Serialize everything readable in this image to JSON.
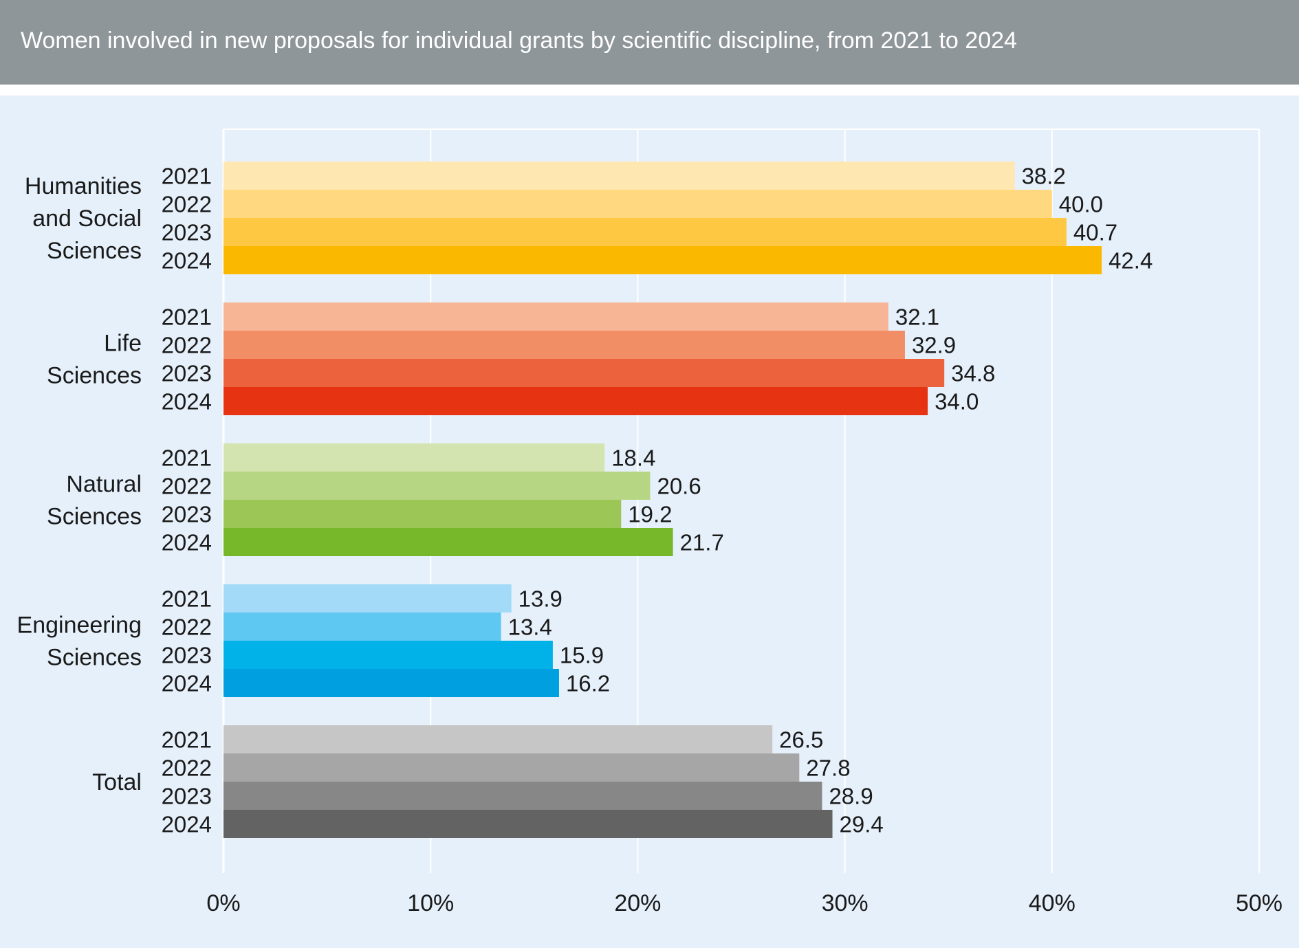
{
  "title": "Women involved in new proposals for individual grants by scientific discipline, from 2021 to 2024",
  "chart_data": {
    "type": "bar",
    "orientation": "horizontal",
    "title": "Women involved in new proposals for individual grants by scientific discipline, from 2021 to 2024",
    "xlim": [
      0,
      50
    ],
    "x_ticks": [
      "0%",
      "10%",
      "20%",
      "30%",
      "40%",
      "50%"
    ],
    "grid": true,
    "groups": [
      {
        "label_lines": [
          "Humanities",
          "and Social",
          "Sciences"
        ],
        "years": [
          "2021",
          "2022",
          "2023",
          "2024"
        ],
        "values": [
          38.2,
          40.0,
          40.7,
          42.4
        ],
        "value_labels": [
          "38.2",
          "40.0",
          "40.7",
          "42.4"
        ],
        "colors": [
          "#ffe7b2",
          "#ffd880",
          "#fec843",
          "#fbb800"
        ]
      },
      {
        "label_lines": [
          "Life",
          "Sciences"
        ],
        "years": [
          "2021",
          "2022",
          "2023",
          "2024"
        ],
        "values": [
          32.1,
          32.9,
          34.8,
          34.0
        ],
        "value_labels": [
          "32.1",
          "32.9",
          "34.8",
          "34.0"
        ],
        "colors": [
          "#f7b596",
          "#f28e66",
          "#ec623c",
          "#e63312"
        ]
      },
      {
        "label_lines": [
          "Natural",
          "Sciences"
        ],
        "years": [
          "2021",
          "2022",
          "2023",
          "2024"
        ],
        "values": [
          18.4,
          20.6,
          19.2,
          21.7
        ],
        "value_labels": [
          "18.4",
          "20.6",
          "19.2",
          "21.7"
        ],
        "colors": [
          "#d3e4b0",
          "#b6d684",
          "#9cc656",
          "#77b82a"
        ]
      },
      {
        "label_lines": [
          "Engineering",
          "Sciences"
        ],
        "years": [
          "2021",
          "2022",
          "2023",
          "2024"
        ],
        "values": [
          13.9,
          13.4,
          15.9,
          16.2
        ],
        "value_labels": [
          "13.9",
          "13.4",
          "15.9",
          "16.2"
        ],
        "colors": [
          "#a2daf7",
          "#5ec8f2",
          "#00b2e8",
          "#009fe0"
        ]
      },
      {
        "label_lines": [
          "Total"
        ],
        "years": [
          "2021",
          "2022",
          "2023",
          "2024"
        ],
        "values": [
          26.5,
          27.8,
          28.9,
          29.4
        ],
        "value_labels": [
          "26.5",
          "27.8",
          "28.9",
          "29.4"
        ],
        "colors": [
          "#c6c6c6",
          "#a6a6a6",
          "#878787",
          "#636363"
        ]
      }
    ]
  }
}
